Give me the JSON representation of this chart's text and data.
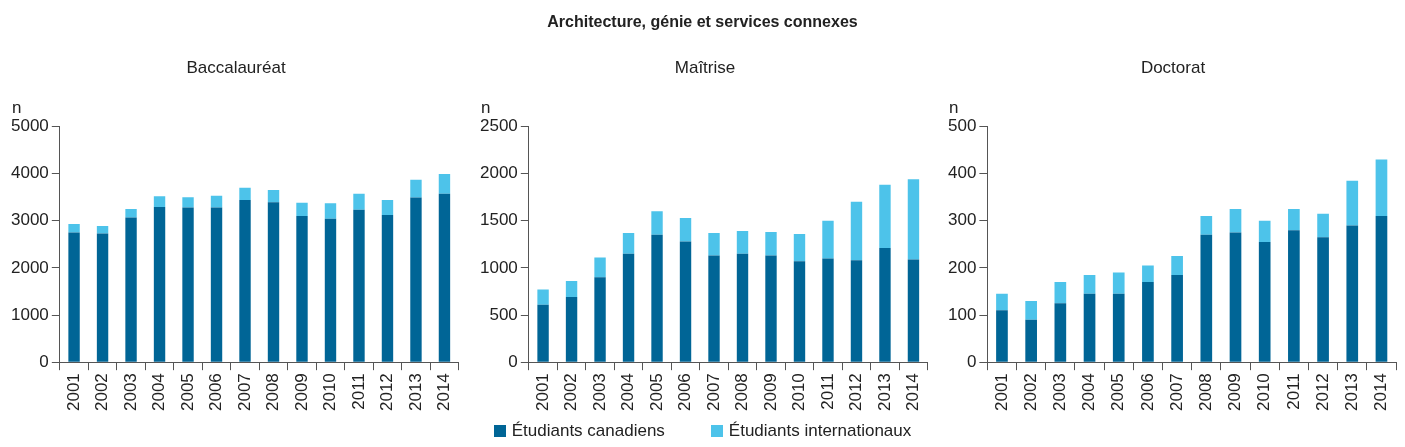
{
  "chart_data": [
    {
      "type": "other",
      "title": "Architecture, génie et services connexes"
    },
    {
      "type": "bar",
      "subtitle": "Baccalauréat",
      "ylabel": "n",
      "stacked": true,
      "legend": "bottom",
      "grid": false,
      "categories": [
        "2001",
        "2002",
        "2003",
        "2004",
        "2005",
        "2006",
        "2007",
        "2008",
        "2009",
        "2010",
        "2011",
        "2012",
        "2013",
        "2014"
      ],
      "series": [
        {
          "name": "Étudiants canadiens",
          "color": "#006596",
          "values": [
            2750,
            2730,
            3070,
            3290,
            3280,
            3280,
            3440,
            3390,
            3100,
            3040,
            3230,
            3120,
            3490,
            3570
          ]
        },
        {
          "name": "Étudiants internationaux",
          "color": "#4dc3ea",
          "values": [
            180,
            160,
            180,
            230,
            220,
            250,
            260,
            260,
            280,
            330,
            340,
            320,
            380,
            420
          ]
        }
      ],
      "ylim": [
        0,
        5000
      ],
      "yticks": [
        0,
        1000,
        2000,
        3000,
        4000,
        5000
      ]
    },
    {
      "type": "bar",
      "subtitle": "Maîtrise",
      "ylabel": "n",
      "stacked": true,
      "grid": false,
      "categories": [
        "2001",
        "2002",
        "2003",
        "2004",
        "2005",
        "2006",
        "2007",
        "2008",
        "2009",
        "2010",
        "2011",
        "2012",
        "2013",
        "2014"
      ],
      "series": [
        {
          "color": "#006596",
          "values": [
            610,
            690,
            900,
            1150,
            1350,
            1280,
            1130,
            1150,
            1130,
            1070,
            1100,
            1080,
            1210,
            1090
          ]
        },
        {
          "color": "#4dc3ea",
          "values": [
            160,
            170,
            210,
            220,
            250,
            250,
            240,
            240,
            250,
            290,
            400,
            620,
            670,
            850
          ]
        }
      ],
      "ylim": [
        0,
        2500
      ],
      "yticks": [
        0,
        500,
        1000,
        1500,
        2000,
        2500
      ]
    },
    {
      "type": "bar",
      "subtitle": "Doctorat",
      "ylabel": "n",
      "stacked": true,
      "grid": false,
      "categories": [
        "2001",
        "2002",
        "2003",
        "2004",
        "2005",
        "2006",
        "2007",
        "2008",
        "2009",
        "2010",
        "2011",
        "2012",
        "2013",
        "2014"
      ],
      "series": [
        {
          "color": "#006596",
          "values": [
            110,
            90,
            125,
            145,
            145,
            170,
            185,
            270,
            275,
            255,
            280,
            265,
            290,
            310
          ]
        },
        {
          "color": "#4dc3ea",
          "values": [
            35,
            40,
            45,
            40,
            45,
            35,
            40,
            40,
            50,
            45,
            45,
            50,
            95,
            120
          ]
        }
      ],
      "ylim": [
        0,
        500
      ],
      "yticks": [
        0,
        100,
        200,
        300,
        400,
        500
      ]
    }
  ]
}
